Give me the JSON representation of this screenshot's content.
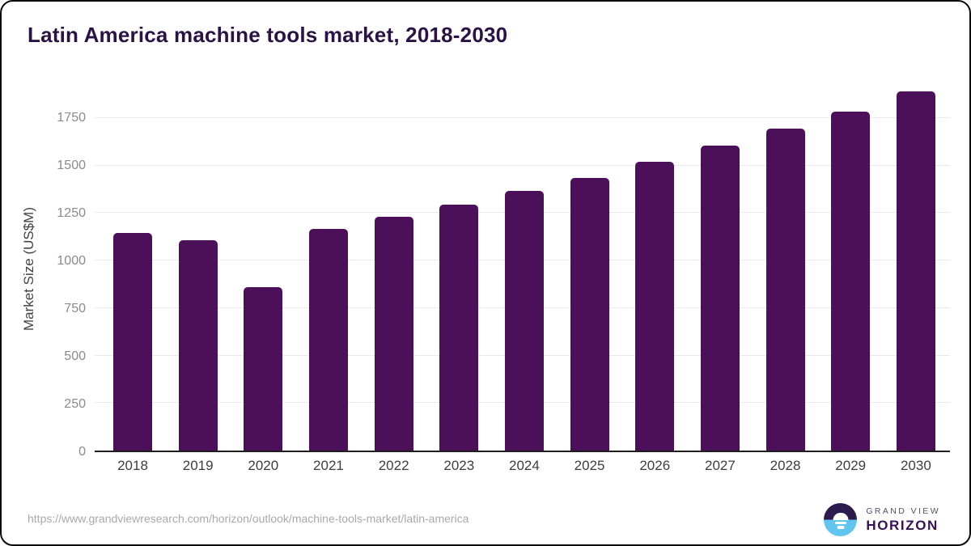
{
  "chart_data": {
    "type": "bar",
    "title": "Latin America machine tools market, 2018-2030",
    "xlabel": "",
    "ylabel": "Market Size (US$M)",
    "categories": [
      "2018",
      "2019",
      "2020",
      "2021",
      "2022",
      "2023",
      "2024",
      "2025",
      "2026",
      "2027",
      "2028",
      "2029",
      "2030"
    ],
    "values": [
      1145,
      1107,
      858,
      1168,
      1232,
      1295,
      1368,
      1436,
      1520,
      1604,
      1692,
      1783,
      1890
    ],
    "yticks": [
      0,
      250,
      500,
      750,
      1000,
      1250,
      1500,
      1750
    ],
    "ylim": [
      0,
      1915
    ],
    "grid": true,
    "legend": false,
    "bar_color": "#4b1059"
  },
  "footer": {
    "url": "https://www.grandviewresearch.com/horizon/outlook/machine-tools-market/latin-america",
    "logo": {
      "line1": "GRAND VIEW",
      "line2": "HORIZON"
    }
  },
  "colors": {
    "title_text": "#2b1244",
    "bar": "#4b1059",
    "logo_dark": "#2d1b4e",
    "logo_blue": "#62c5f0",
    "axis_line": "#1f1f1f",
    "gridline": "#e9e9e9"
  }
}
